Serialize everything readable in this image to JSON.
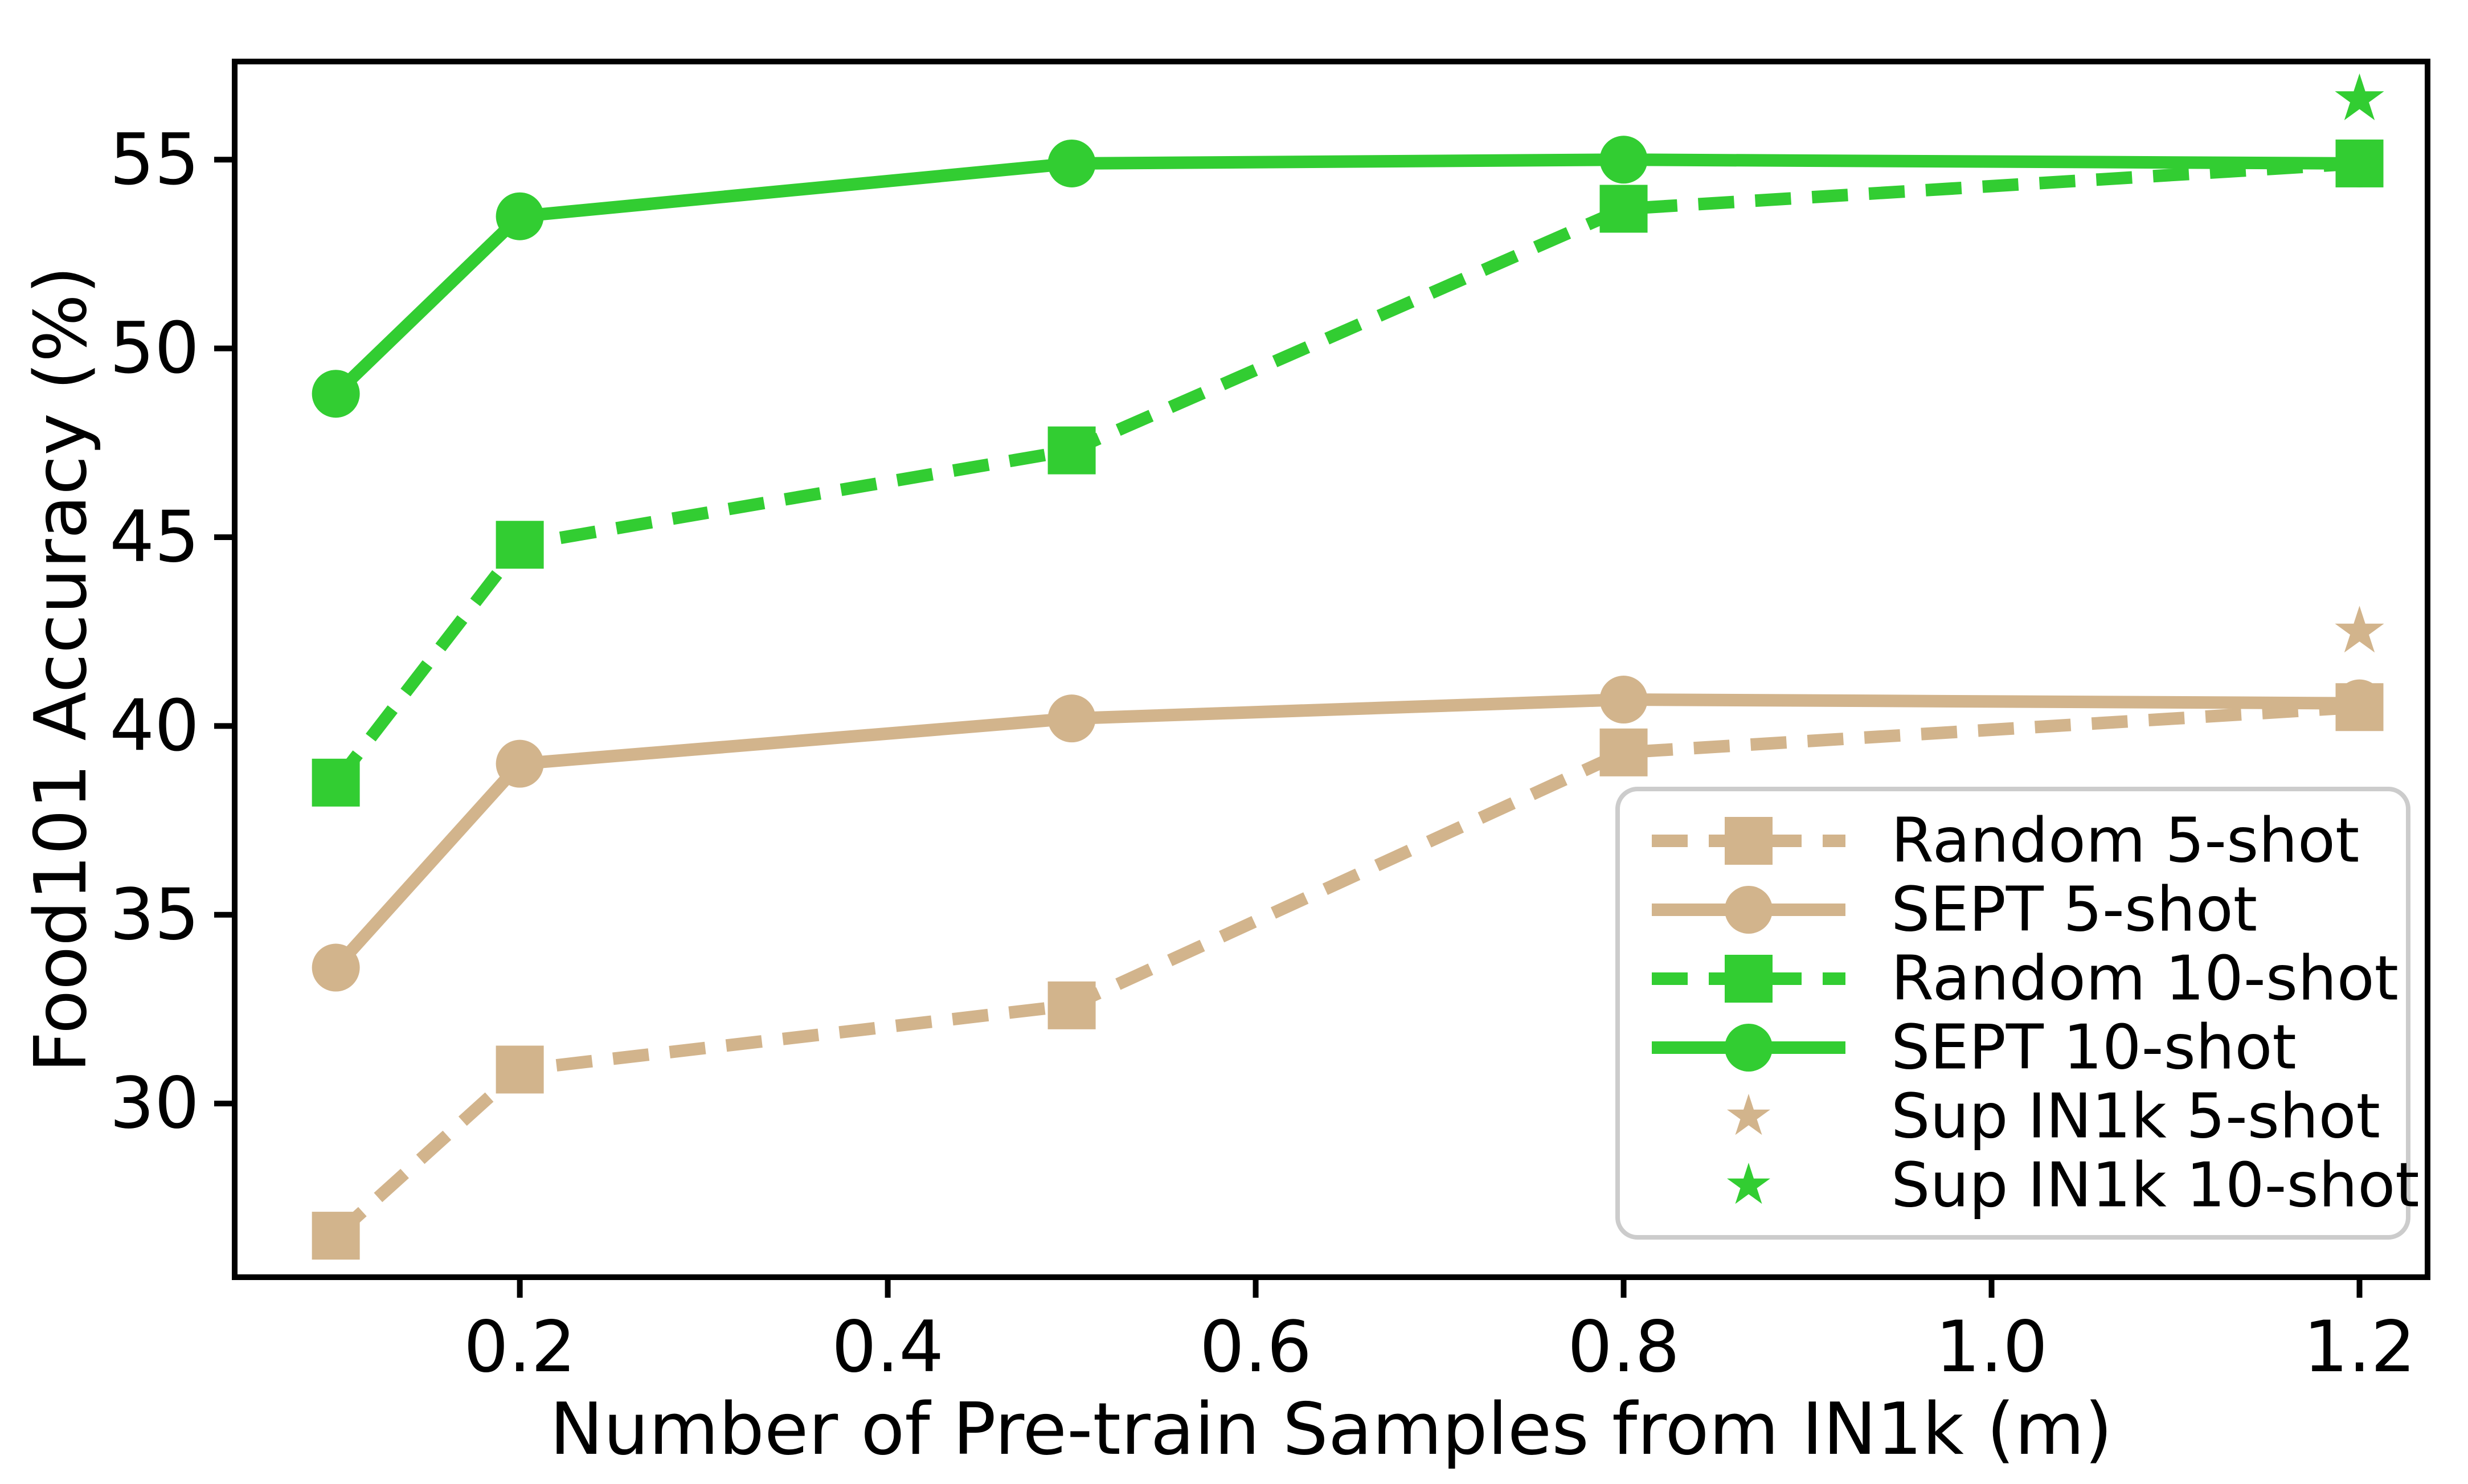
{
  "chart_data": {
    "type": "line",
    "title": "",
    "xlabel": "Number of Pre-train Samples from IN1k (m)",
    "ylabel": "Food101 Accuracy (%)",
    "x": [
      0.1,
      0.2,
      0.5,
      0.8,
      1.2
    ],
    "xticks": [
      0.2,
      0.4,
      0.6,
      0.8,
      1.0,
      1.2
    ],
    "yticks": [
      30,
      35,
      40,
      45,
      50,
      55
    ],
    "xlim": [
      0.045,
      1.237
    ],
    "ylim": [
      25.4,
      57.6
    ],
    "grid": false,
    "legend_position": "lower right",
    "series": [
      {
        "name": "Random 5-shot",
        "color": "#D2B48C",
        "linestyle": "dashed",
        "marker": "square",
        "values": [
          26.5,
          30.9,
          32.6,
          39.3,
          40.5
        ]
      },
      {
        "name": "SEPT 5-shot",
        "color": "#D2B48C",
        "linestyle": "solid",
        "marker": "circle",
        "values": [
          33.6,
          39.0,
          40.2,
          40.7,
          40.6
        ]
      },
      {
        "name": "Random 10-shot",
        "color": "#32CD32",
        "linestyle": "dashed",
        "marker": "square",
        "values": [
          38.5,
          44.8,
          47.3,
          53.7,
          54.9
        ]
      },
      {
        "name": "SEPT 10-shot",
        "color": "#32CD32",
        "linestyle": "solid",
        "marker": "circle",
        "values": [
          48.8,
          53.5,
          54.9,
          55.0,
          54.9
        ]
      }
    ],
    "points": [
      {
        "name": "Sup IN1k 5-shot",
        "color": "#D2B48C",
        "marker": "star",
        "x": 1.2,
        "y": 42.5
      },
      {
        "name": "Sup IN1k 10-shot",
        "color": "#32CD32",
        "marker": "star",
        "x": 1.2,
        "y": 56.6
      }
    ],
    "axis_color": "#000000"
  }
}
